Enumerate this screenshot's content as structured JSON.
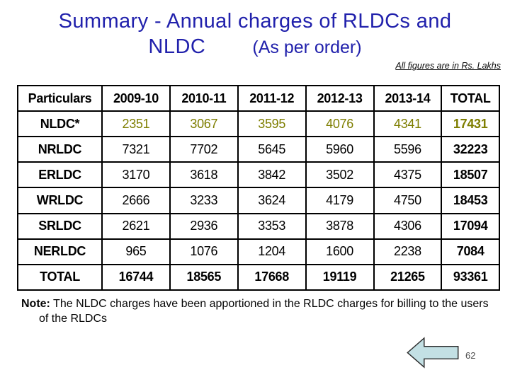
{
  "slide": {
    "title_line1": "Summary - Annual charges of RLDCs and",
    "title_line2_left": "NLDC",
    "title_line2_right": "(As per order)",
    "units_note": "All figures are in Rs. Lakhs",
    "page_number": "62"
  },
  "table": {
    "headers": [
      "Particulars",
      "2009-10",
      "2010-11",
      "2011-12",
      "2012-13",
      "2013-14",
      "TOTAL"
    ],
    "rows": [
      {
        "label": "NLDC*",
        "values": [
          "2351",
          "3067",
          "3595",
          "4076",
          "4341"
        ],
        "total": "17431",
        "values_color": "#7E7E00"
      },
      {
        "label": "NRLDC",
        "values": [
          "7321",
          "7702",
          "5645",
          "5960",
          "5596"
        ],
        "total": "32223"
      },
      {
        "label": "ERLDC",
        "values": [
          "3170",
          "3618",
          "3842",
          "3502",
          "4375"
        ],
        "total": "18507"
      },
      {
        "label": "WRLDC",
        "values": [
          "2666",
          "3233",
          "3624",
          "4179",
          "4750"
        ],
        "total": "18453"
      },
      {
        "label": "SRLDC",
        "values": [
          "2621",
          "2936",
          "3353",
          "3878",
          "4306"
        ],
        "total": "17094"
      },
      {
        "label": "NERLDC",
        "values": [
          "965",
          "1076",
          "1204",
          "1600",
          "2238"
        ],
        "total": "7084"
      },
      {
        "label": "TOTAL",
        "values": [
          "16744",
          "18565",
          "17668",
          "19119",
          "21265"
        ],
        "total": "93361",
        "bold": true
      }
    ]
  },
  "note": {
    "label": "Note:",
    "text": " The NLDC charges have been apportioned in the RLDC charges for billing to the users of the RLDCs"
  },
  "icons": {
    "back_arrow": "left-block-arrow-icon"
  },
  "colors": {
    "title_text": "#2121AC",
    "nldc_values": "#7E7E00",
    "arrow_fill": "#C3E0E4",
    "arrow_stroke": "#2A2A2A",
    "table_border": "#000000",
    "page_number_text": "#4D4D4D"
  }
}
